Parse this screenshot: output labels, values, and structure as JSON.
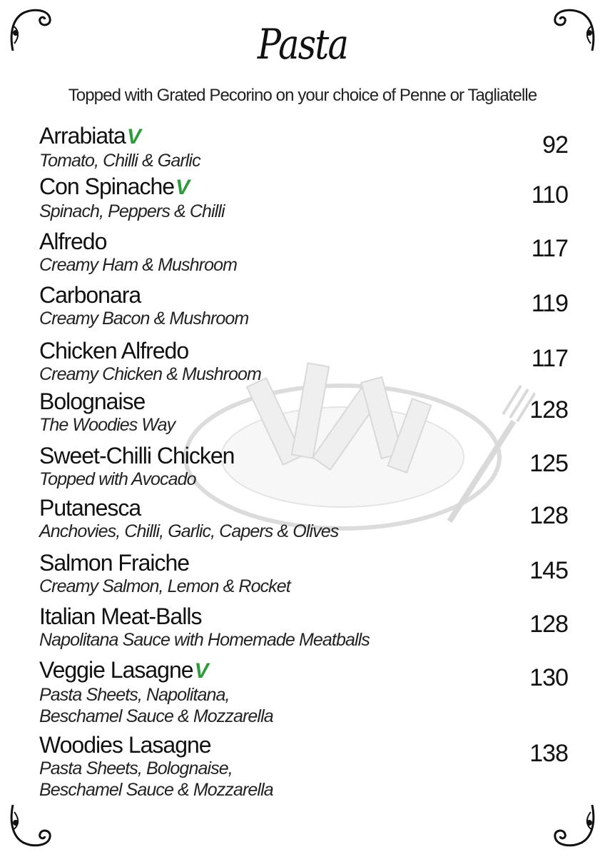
{
  "menu": {
    "title": "Pasta",
    "subtitle": "Topped with Grated Pecorino on your choice of Penne or Tagliatelle",
    "vegetarian_icon_color": "#2e9a3c",
    "items": [
      {
        "name": "Arrabiata",
        "vegetarian": true,
        "description": [
          "Tomato, Chilli & Garlic"
        ],
        "price": "92"
      },
      {
        "name": "Con Spinache",
        "vegetarian": true,
        "description": [
          "Spinach, Peppers & Chilli"
        ],
        "price": "110"
      },
      {
        "name": "Alfredo",
        "vegetarian": false,
        "description": [
          "Creamy Ham & Mushroom"
        ],
        "price": "117"
      },
      {
        "name": "Carbonara",
        "vegetarian": false,
        "description": [
          "Creamy Bacon & Mushroom"
        ],
        "price": "119"
      },
      {
        "name": "Chicken Alfredo",
        "vegetarian": false,
        "description": [
          "Creamy Chicken & Mushroom"
        ],
        "price": "117"
      },
      {
        "name": "Bolognaise",
        "vegetarian": false,
        "description": [
          "The Woodies Way"
        ],
        "price": "128"
      },
      {
        "name": "Sweet-Chilli Chicken",
        "vegetarian": false,
        "description": [
          "Topped with Avocado"
        ],
        "price": "125"
      },
      {
        "name": "Putanesca",
        "vegetarian": false,
        "description": [
          "Anchovies, Chilli, Garlic, Capers & Olives"
        ],
        "price": "128"
      },
      {
        "name": "Salmon Fraiche",
        "vegetarian": false,
        "description": [
          "Creamy Salmon, Lemon & Rocket"
        ],
        "price": "145"
      },
      {
        "name": "Italian Meat-Balls",
        "vegetarian": false,
        "description": [
          "Napolitana Sauce with Homemade Meatballs"
        ],
        "price": "128"
      },
      {
        "name": "Veggie Lasagne",
        "vegetarian": true,
        "description": [
          "Pasta Sheets, Napolitana,",
          "Beschamel Sauce & Mozzarella"
        ],
        "price": "130"
      },
      {
        "name": "Woodies Lasagne",
        "vegetarian": false,
        "description": [
          "Pasta Sheets, Bolognaise,",
          "Beschamel Sauce & Mozzarella"
        ],
        "price": "138"
      }
    ]
  }
}
